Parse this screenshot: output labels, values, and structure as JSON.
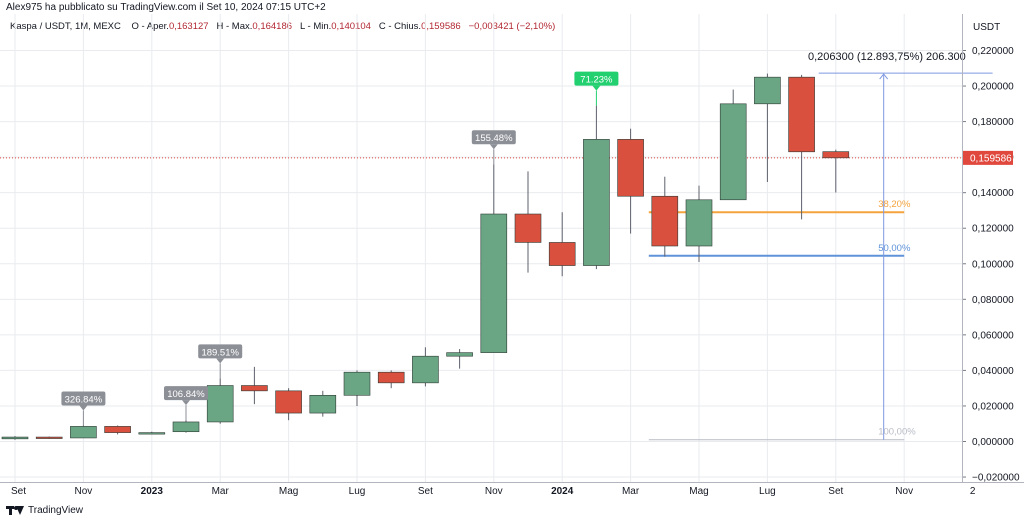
{
  "header": {
    "publisher_line": "Alex975 ha pubblicato su TradingView.com il Set 10, 2024 07:15 UTC+2"
  },
  "ohlc": {
    "symbol": "Kaspa / USDT, 1M, MEXC",
    "open_label": "O",
    "open_text": "- Aper.",
    "open_value": "0,163127",
    "high_label": "H",
    "high_text": "- Max.",
    "high_value": "0,164186",
    "low_label": "L",
    "low_text": "- Min.",
    "low_value": "0,140104",
    "close_label": "C",
    "close_text": "- Chius.",
    "close_value": "0,159586",
    "change_value": "−0,003421 (−2,10%)"
  },
  "footer": {
    "brand": "TradingView"
  },
  "colors": {
    "up": "#6aa584",
    "down": "#d9503f",
    "axis_text": "#131722",
    "grid": "#e9ebef",
    "price_tag": "#e0473d",
    "fib_382": "#f5a33c",
    "fib_500": "#5e93d9",
    "fib_100": "#b8bcc6",
    "measure": "#7f99e0",
    "gray_badge": "#8c8f96",
    "green_badge": "#22d070"
  },
  "chart_data": {
    "type": "candlestick",
    "axis_title": "USDT",
    "ylim": [
      -0.02,
      0.23
    ],
    "y_ticks": [
      {
        "value": 0.22,
        "label": "0,220000"
      },
      {
        "value": 0.2,
        "label": "0,200000"
      },
      {
        "value": 0.18,
        "label": "0,180000"
      },
      {
        "value": 0.16,
        "label": "0,160000"
      },
      {
        "value": 0.14,
        "label": "0,140000"
      },
      {
        "value": 0.12,
        "label": "0,120000"
      },
      {
        "value": 0.1,
        "label": "0,100000"
      },
      {
        "value": 0.08,
        "label": "0,080000"
      },
      {
        "value": 0.06,
        "label": "0,060000"
      },
      {
        "value": 0.04,
        "label": "0,040000"
      },
      {
        "value": 0.02,
        "label": "0,020000"
      },
      {
        "value": 0.0,
        "label": "0,000000"
      },
      {
        "value": -0.02,
        "label": "−0,020000"
      }
    ],
    "x_ticks": [
      {
        "index": 0,
        "label": "Set",
        "bold": false
      },
      {
        "index": 2,
        "label": "Nov",
        "bold": false
      },
      {
        "index": 4,
        "label": "2023",
        "bold": true
      },
      {
        "index": 6,
        "label": "Mar",
        "bold": false
      },
      {
        "index": 8,
        "label": "Mag",
        "bold": false
      },
      {
        "index": 10,
        "label": "Lug",
        "bold": false
      },
      {
        "index": 12,
        "label": "Set",
        "bold": false
      },
      {
        "index": 14,
        "label": "Nov",
        "bold": false
      },
      {
        "index": 16,
        "label": "2024",
        "bold": true
      },
      {
        "index": 18,
        "label": "Mar",
        "bold": false
      },
      {
        "index": 20,
        "label": "Mag",
        "bold": false
      },
      {
        "index": 22,
        "label": "Lug",
        "bold": false
      },
      {
        "index": 24,
        "label": "Set",
        "bold": false
      },
      {
        "index": 26,
        "label": "Nov",
        "bold": false
      },
      {
        "index": 28,
        "label": "2",
        "bold": false
      }
    ],
    "candles": [
      {
        "month": "2022-09",
        "open": 0.0015,
        "high": 0.003,
        "low": 0.001,
        "close": 0.0025
      },
      {
        "month": "2022-10",
        "open": 0.0025,
        "high": 0.0028,
        "low": 0.0015,
        "close": 0.002
      },
      {
        "month": "2022-11",
        "open": 0.002,
        "high": 0.009,
        "low": 0.002,
        "close": 0.0085
      },
      {
        "month": "2022-12",
        "open": 0.0085,
        "high": 0.009,
        "low": 0.004,
        "close": 0.005
      },
      {
        "month": "2023-01",
        "open": 0.0048,
        "high": 0.0055,
        "low": 0.0042,
        "close": 0.005
      },
      {
        "month": "2023-02",
        "open": 0.0055,
        "high": 0.012,
        "low": 0.005,
        "close": 0.011
      },
      {
        "month": "2023-03",
        "open": 0.011,
        "high": 0.0355,
        "low": 0.01,
        "close": 0.0315
      },
      {
        "month": "2023-04",
        "open": 0.0315,
        "high": 0.042,
        "low": 0.021,
        "close": 0.0285
      },
      {
        "month": "2023-05",
        "open": 0.0285,
        "high": 0.03,
        "low": 0.012,
        "close": 0.016
      },
      {
        "month": "2023-06",
        "open": 0.016,
        "high": 0.0285,
        "low": 0.014,
        "close": 0.026
      },
      {
        "month": "2023-07",
        "open": 0.026,
        "high": 0.04,
        "low": 0.02,
        "close": 0.039
      },
      {
        "month": "2023-08",
        "open": 0.039,
        "high": 0.04,
        "low": 0.03,
        "close": 0.033
      },
      {
        "month": "2023-09",
        "open": 0.033,
        "high": 0.053,
        "low": 0.031,
        "close": 0.048
      },
      {
        "month": "2023-10",
        "open": 0.048,
        "high": 0.052,
        "low": 0.041,
        "close": 0.05
      },
      {
        "month": "2023-11",
        "open": 0.05,
        "high": 0.156,
        "low": 0.05,
        "close": 0.128
      },
      {
        "month": "2023-12",
        "open": 0.128,
        "high": 0.152,
        "low": 0.095,
        "close": 0.112
      },
      {
        "month": "2024-01",
        "open": 0.112,
        "high": 0.129,
        "low": 0.093,
        "close": 0.099
      },
      {
        "month": "2024-02",
        "open": 0.099,
        "high": 0.189,
        "low": 0.097,
        "close": 0.17
      },
      {
        "month": "2024-03",
        "open": 0.17,
        "high": 0.176,
        "low": 0.117,
        "close": 0.138
      },
      {
        "month": "2024-04",
        "open": 0.138,
        "high": 0.149,
        "low": 0.104,
        "close": 0.11
      },
      {
        "month": "2024-05",
        "open": 0.11,
        "high": 0.144,
        "low": 0.101,
        "close": 0.136
      },
      {
        "month": "2024-06",
        "open": 0.136,
        "high": 0.198,
        "low": 0.136,
        "close": 0.19
      },
      {
        "month": "2024-07",
        "open": 0.19,
        "high": 0.207,
        "low": 0.146,
        "close": 0.205
      },
      {
        "month": "2024-08",
        "open": 0.205,
        "high": 0.2063,
        "low": 0.125,
        "close": 0.163
      },
      {
        "month": "2024-09",
        "open": 0.1631,
        "high": 0.1642,
        "low": 0.1401,
        "close": 0.1596
      }
    ],
    "badges": [
      {
        "index": 2,
        "value": 0.009,
        "label": "326.84%",
        "style": "gray"
      },
      {
        "index": 5,
        "value": 0.012,
        "label": "106.84%",
        "style": "gray"
      },
      {
        "index": 6,
        "value": 0.0355,
        "label": "189.51%",
        "style": "gray"
      },
      {
        "index": 14,
        "value": 0.156,
        "label": "155.48%",
        "style": "gray"
      },
      {
        "index": 17,
        "value": 0.189,
        "label": "71.23%",
        "style": "green"
      }
    ],
    "last_price": {
      "value": 0.159586,
      "label": "0,159586"
    },
    "fib_levels": [
      {
        "value": 0.129,
        "label": "38,20%",
        "style": "orange",
        "from_index": 19,
        "to_index": 26
      },
      {
        "value": 0.1045,
        "label": "50,00%",
        "style": "blue",
        "from_index": 19,
        "to_index": 26
      },
      {
        "value": 0.001,
        "label": "100,00%",
        "style": "gray",
        "from_index": 19,
        "to_index": 26
      }
    ],
    "measure": {
      "from_value": 0.001,
      "to_value": 0.2073,
      "x_index": 25.4,
      "top_from_index": 23.5,
      "top_to_index": 28,
      "label": "0,206300 (12.893,75%) 206.300"
    }
  }
}
